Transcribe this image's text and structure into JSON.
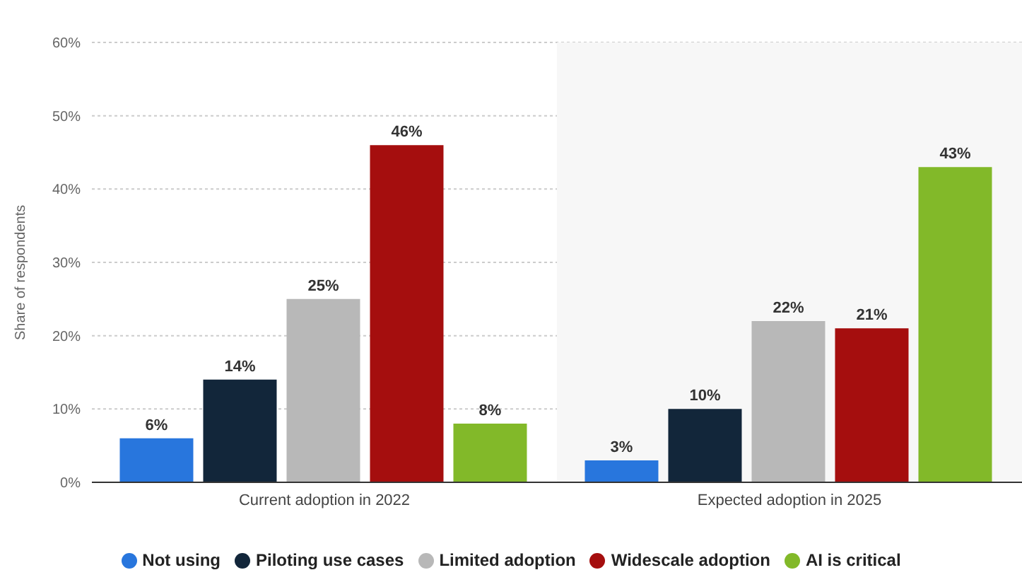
{
  "chart_data": {
    "type": "bar",
    "ylabel": "Share of respondents",
    "categories": [
      "Current adoption in 2022",
      "Expected adoption in 2025"
    ],
    "series": [
      {
        "name": "Not using",
        "color": "#2876dd",
        "values": [
          6,
          3
        ],
        "value_labels": [
          "6%",
          "3%"
        ]
      },
      {
        "name": "Piloting use cases",
        "color": "#12263a",
        "values": [
          14,
          10
        ],
        "value_labels": [
          "14%",
          "10%"
        ]
      },
      {
        "name": "Limited adoption",
        "color": "#b8b8b8",
        "values": [
          25,
          22
        ],
        "value_labels": [
          "25%",
          "22%"
        ]
      },
      {
        "name": "Widescale adoption",
        "color": "#a50e0e",
        "values": [
          46,
          21
        ],
        "value_labels": [
          "46%",
          "21%"
        ]
      },
      {
        "name": "AI is critical",
        "color": "#82b929",
        "values": [
          8,
          43
        ],
        "value_labels": [
          "8%",
          "43%"
        ]
      }
    ],
    "ylim": [
      0,
      60
    ],
    "yticks": [
      {
        "value": 0,
        "label": "0%"
      },
      {
        "value": 10,
        "label": "10%"
      },
      {
        "value": 20,
        "label": "20%"
      },
      {
        "value": 30,
        "label": "30%"
      },
      {
        "value": 40,
        "label": "40%"
      },
      {
        "value": 50,
        "label": "50%"
      },
      {
        "value": 60,
        "label": "60%"
      }
    ],
    "grid": "y",
    "bands": [
      {
        "axis": "x",
        "from": "Expected adoption in 2025",
        "to": "Expected adoption in 2025",
        "color": "#f7f7f7"
      }
    ],
    "legend": "bottom"
  }
}
